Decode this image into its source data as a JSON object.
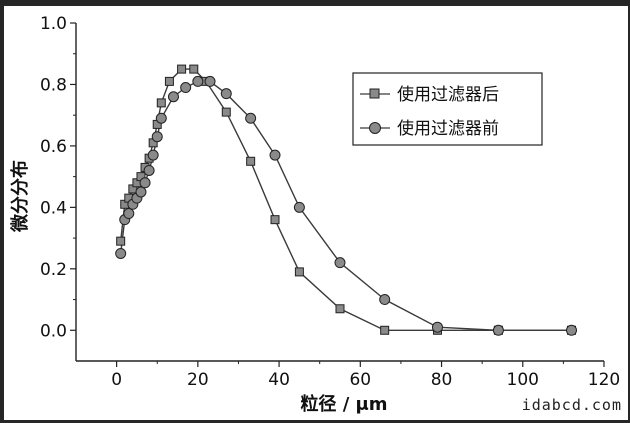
{
  "chart_data": {
    "type": "line",
    "xlabel": "粒径 / μm",
    "ylabel": "微分分布",
    "xlim": [
      -10,
      120
    ],
    "ylim": [
      -0.1,
      1.0
    ],
    "xticks": [
      0,
      20,
      40,
      60,
      80,
      100,
      120
    ],
    "yticks": [
      0.0,
      0.2,
      0.4,
      0.6,
      0.8,
      1.0
    ],
    "legend_position": "top-right",
    "series": [
      {
        "name": "使用过滤器后",
        "marker": "square",
        "x": [
          1,
          2,
          3,
          4,
          5,
          6,
          7,
          8,
          9,
          10,
          11,
          13,
          16,
          19,
          22,
          27,
          33,
          39,
          45,
          55,
          66,
          79,
          94,
          112
        ],
        "y": [
          0.29,
          0.41,
          0.43,
          0.46,
          0.48,
          0.5,
          0.53,
          0.56,
          0.61,
          0.67,
          0.74,
          0.81,
          0.85,
          0.85,
          0.81,
          0.71,
          0.55,
          0.36,
          0.19,
          0.07,
          0.0,
          0.0,
          0.0,
          0.0
        ]
      },
      {
        "name": "使用过滤器前",
        "marker": "circle",
        "x": [
          1,
          2,
          3,
          4,
          5,
          6,
          7,
          8,
          9,
          10,
          11,
          14,
          17,
          20,
          23,
          27,
          33,
          39,
          45,
          55,
          66,
          79,
          94,
          112
        ],
        "y": [
          0.25,
          0.36,
          0.38,
          0.41,
          0.43,
          0.45,
          0.48,
          0.52,
          0.57,
          0.63,
          0.69,
          0.76,
          0.79,
          0.81,
          0.81,
          0.77,
          0.69,
          0.57,
          0.4,
          0.22,
          0.1,
          0.01,
          0.0,
          0.0
        ]
      }
    ],
    "colors": {
      "line": "#3a3a3a",
      "marker_fill": "#8a8a8a",
      "background": "#ffffff"
    }
  },
  "watermark": "idabcd.com"
}
